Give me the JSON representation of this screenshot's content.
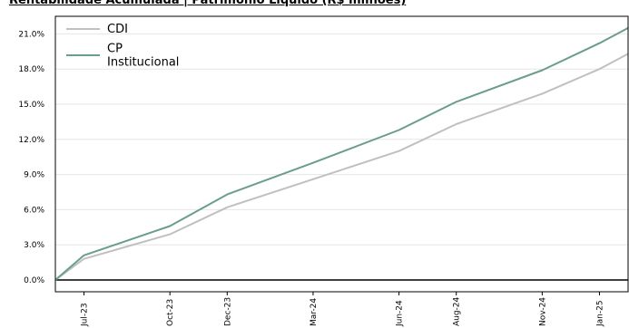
{
  "chart_data": {
    "type": "line",
    "title": "Rentabilidade Acumulada | Patrimônio Líquido (R$ milhões)",
    "xlabel": "",
    "ylabel": "",
    "ylim": [
      0,
      22.5
    ],
    "y_ticks": [
      "0.0%",
      "3.0%",
      "6.0%",
      "9.0%",
      "12.0%",
      "15.0%",
      "18.0%",
      "21.0%"
    ],
    "y_tick_values": [
      0,
      3,
      6,
      9,
      12,
      15,
      18,
      21
    ],
    "x_ticks": [
      "Jul-23",
      "Oct-23",
      "Dec-23",
      "Mar-24",
      "Jun-24",
      "Aug-24",
      "Nov-24",
      "Jan-25"
    ],
    "grid": true,
    "legend_position": "top-left",
    "series": [
      {
        "name": "CDI",
        "color": "#c0c0c0",
        "x": [
          "Jun-23",
          "Jul-23",
          "Oct-23",
          "Dec-23",
          "Mar-24",
          "Jun-24",
          "Aug-24",
          "Nov-24",
          "Jan-25",
          "Feb-25"
        ],
        "values": [
          0.0,
          1.8,
          3.9,
          6.2,
          8.6,
          11.0,
          13.3,
          15.9,
          18.0,
          19.3
        ]
      },
      {
        "name": "CP\nInstitucional",
        "color": "#6a9e8a",
        "x": [
          "Jun-23",
          "Jul-23",
          "Oct-23",
          "Dec-23",
          "Mar-24",
          "Jun-24",
          "Aug-24",
          "Nov-24",
          "Jan-25",
          "Feb-25"
        ],
        "values": [
          0.0,
          2.1,
          4.6,
          7.3,
          10.0,
          12.8,
          15.2,
          17.9,
          20.2,
          21.5
        ]
      }
    ]
  }
}
